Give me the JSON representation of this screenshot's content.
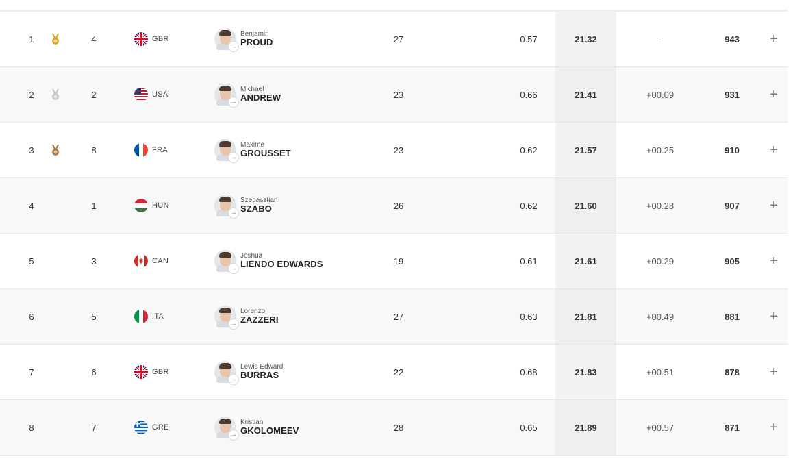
{
  "results": [
    {
      "rank": "1",
      "medal": "gold",
      "lane": "4",
      "country": "GBR",
      "flag": "gbr",
      "first": "Benjamin",
      "last": "PROUD",
      "age": "27",
      "reaction": "0.57",
      "time": "21.32",
      "behind": "-",
      "points": "943"
    },
    {
      "rank": "2",
      "medal": "silver",
      "lane": "2",
      "country": "USA",
      "flag": "usa",
      "first": "Michael",
      "last": "ANDREW",
      "age": "23",
      "reaction": "0.66",
      "time": "21.41",
      "behind": "+00.09",
      "points": "931"
    },
    {
      "rank": "3",
      "medal": "bronze",
      "lane": "8",
      "country": "FRA",
      "flag": "fra",
      "first": "Maxime",
      "last": "GROUSSET",
      "age": "23",
      "reaction": "0.62",
      "time": "21.57",
      "behind": "+00.25",
      "points": "910"
    },
    {
      "rank": "4",
      "medal": "",
      "lane": "1",
      "country": "HUN",
      "flag": "hun",
      "first": "Szebasztian",
      "last": "SZABO",
      "age": "26",
      "reaction": "0.62",
      "time": "21.60",
      "behind": "+00.28",
      "points": "907"
    },
    {
      "rank": "5",
      "medal": "",
      "lane": "3",
      "country": "CAN",
      "flag": "can",
      "first": "Joshua",
      "last": "LIENDO EDWARDS",
      "age": "19",
      "reaction": "0.61",
      "time": "21.61",
      "behind": "+00.29",
      "points": "905"
    },
    {
      "rank": "6",
      "medal": "",
      "lane": "5",
      "country": "ITA",
      "flag": "ita",
      "first": "Lorenzo",
      "last": "ZAZZERI",
      "age": "27",
      "reaction": "0.63",
      "time": "21.81",
      "behind": "+00.49",
      "points": "881"
    },
    {
      "rank": "7",
      "medal": "",
      "lane": "6",
      "country": "GBR",
      "flag": "gbr",
      "first": "Lewis Edward",
      "last": "BURRAS",
      "age": "22",
      "reaction": "0.68",
      "time": "21.83",
      "behind": "+00.51",
      "points": "878"
    },
    {
      "rank": "8",
      "medal": "",
      "lane": "7",
      "country": "GRE",
      "flag": "gre",
      "first": "Kristian",
      "last": "GKOLOMEEV",
      "age": "28",
      "reaction": "0.65",
      "time": "21.89",
      "behind": "+00.57",
      "points": "871"
    }
  ],
  "colors": {
    "gold": "#d9a520",
    "silver": "#c4c4c4",
    "bronze": "#a9773a",
    "time_bg": "#f2f2f2"
  },
  "icons": {
    "medal": "medal-icon",
    "expand": "plus-icon",
    "profile_link": "arrow-link-icon"
  },
  "expand_symbol": "+",
  "link_symbol": "→"
}
